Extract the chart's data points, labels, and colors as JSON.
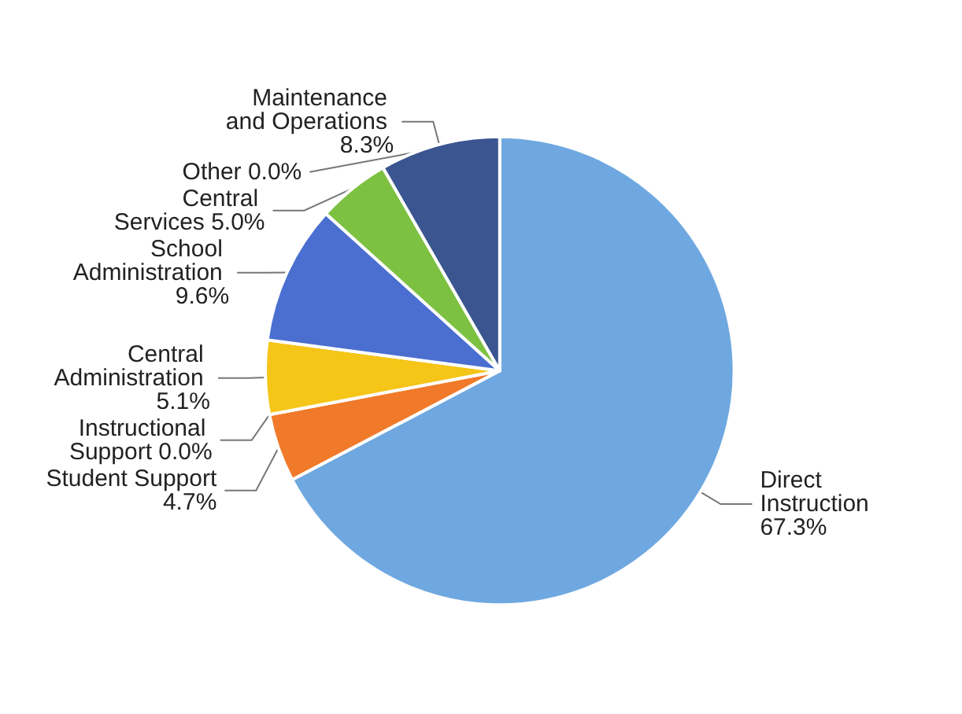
{
  "chart_data": {
    "type": "pie",
    "categories": [
      "Direct Instruction",
      "Student Support",
      "Instructional Support",
      "Central Administration",
      "School Administration",
      "Central Services",
      "Maintenance and Operations",
      "Other"
    ],
    "values": [
      67.3,
      4.7,
      0.0,
      5.1,
      9.6,
      5.0,
      8.3,
      0.0
    ],
    "value_labels": [
      "67.3%",
      "4.7%",
      "0.0%",
      "5.1%",
      "9.6%",
      "5.0%",
      "8.3%",
      "0.0%"
    ],
    "colors": [
      "#6fa8e0",
      "#f07a2a",
      "#9e9e9e",
      "#f5c518",
      "#4a6fd0",
      "#7dc142",
      "#3a5590",
      "#8c8c8c"
    ]
  }
}
